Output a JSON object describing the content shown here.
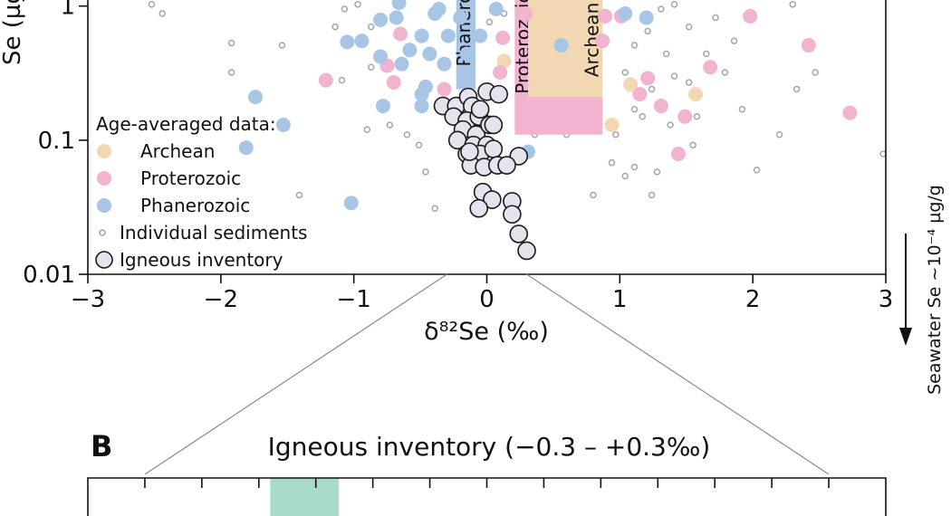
{
  "chart_data": [
    {
      "type": "scatter",
      "xlabel": "δ⁸²Se (‰)",
      "ylabel": "Se (µg/g)",
      "xlim": [
        -3,
        3
      ],
      "ylim": [
        0.01,
        1.11
      ],
      "yscale": "log",
      "xticks": [
        {
          "value": -3,
          "label": "−3"
        },
        {
          "value": -2,
          "label": "−2"
        },
        {
          "value": -1,
          "label": "−1"
        },
        0,
        1,
        2,
        3
      ],
      "yticks": [
        0.01,
        0.1,
        1
      ],
      "legend_title": "Age-averaged data:",
      "annotation": "Seawater Se ~10⁻⁴ µg/g",
      "ranges": [
        {
          "name": "Proterozoic",
          "color": "#f1b3cf",
          "x": [
            0.21,
            0.87
          ],
          "ymin": 0.11
        },
        {
          "name": "Archean",
          "color": "#f2d7b3",
          "x": [
            0.31,
            0.87
          ],
          "ymin": 0.21
        },
        {
          "name": "Phanerozoic",
          "color": "#a9c5e6",
          "x": [
            -0.23,
            -0.085
          ],
          "ymin": 0.24
        }
      ],
      "series": [
        {
          "name": "Individual sediments",
          "marker": "ring",
          "color": "#a6a6a6",
          "x": [
            -2.44,
            -2.52,
            -1.92,
            -1.54,
            -1.41,
            -1.92,
            -1.09,
            -0.87,
            -0.9,
            -0.73,
            -0.6,
            -0.46,
            -0.39,
            -0.51,
            -0.97,
            -1.07,
            -1.14,
            0.8,
            1.04,
            1.11,
            1.24,
            1.28,
            1.41,
            1.52,
            1.65,
            1.79,
            1.92,
            2.2,
            2.47,
            2.3,
            2.98,
            2.03,
            1.55,
            1.38,
            1.11,
            1.24,
            1.35,
            1.52,
            0.97,
            1.17,
            1.04,
            0.77,
            0.6,
            0.73,
            0.43,
            0.36,
            0.13,
            0.02,
            -0.87,
            1.11,
            1.21,
            1.72,
            1.86,
            1.58,
            1.41,
            1.31,
            0.83,
            2.33,
            0.51,
            0.94
          ],
          "values": [
            0.88,
            1.03,
            0.53,
            0.51,
            0.039,
            0.32,
            0.28,
            0.35,
            0.12,
            0.13,
            0.11,
            0.058,
            0.031,
            0.092,
            1.03,
            0.95,
            0.7,
            0.039,
            0.054,
            0.063,
            0.039,
            0.058,
            1.03,
            0.7,
            0.44,
            0.32,
            0.17,
            0.11,
            0.32,
            1.03,
            0.079,
            0.06,
            0.092,
            0.13,
            0.17,
            0.24,
            0.44,
            0.27,
            0.11,
            0.15,
            0.32,
            0.44,
            0.11,
            0.24,
            0.7,
            0.11,
            0.88,
            0.76,
            0.7,
            0.51,
            0.65,
            0.82,
            0.55,
            0.15,
            0.3,
            0.95,
            1.03,
            0.24,
            0.17,
            0.068
          ]
        },
        {
          "name": "Archean",
          "marker": "dot",
          "color": "#f2d7b3",
          "x": [
            0.13,
            1.08,
            1.57,
            0.94,
            0.67
          ],
          "values": [
            0.39,
            0.26,
            0.22,
            0.13,
            0.88
          ]
        },
        {
          "name": "Proterozoic",
          "marker": "dot",
          "color": "#f1b3cf",
          "x": [
            -1.21,
            -0.65,
            -0.75,
            -0.7,
            -0.32,
            0.12,
            0.1,
            0.29,
            0.89,
            0.87,
            1.01,
            1.68,
            1.98,
            2.42,
            1.15,
            1.21,
            1.31,
            1.49,
            1.44,
            2.73
          ],
          "values": [
            0.28,
            0.62,
            0.36,
            0.27,
            0.24,
            0.58,
            0.32,
            0.88,
            0.84,
            0.55,
            0.84,
            0.35,
            0.84,
            0.51,
            0.22,
            0.29,
            0.18,
            0.15,
            0.079,
            0.16
          ]
        },
        {
          "name": "Phanerozoic",
          "marker": "dot",
          "color": "#a9c5e6",
          "x": [
            -0.66,
            -0.68,
            -0.8,
            -1.05,
            -0.94,
            -0.8,
            -0.64,
            -0.58,
            -0.49,
            -0.43,
            -0.32,
            -0.39,
            -0.29,
            -0.2,
            -0.46,
            -0.49,
            -0.49,
            -0.36,
            -0.15,
            -0.05,
            -1.74,
            -1.53,
            -1.81,
            -1.02,
            -0.78,
            0.31,
            1.2,
            1.04,
            0.56,
            0.07
          ],
          "values": [
            1.06,
            0.82,
            0.79,
            0.54,
            0.55,
            0.42,
            0.37,
            0.47,
            0.6,
            0.44,
            0.37,
            0.88,
            0.6,
            0.82,
            0.25,
            0.22,
            0.18,
            0.95,
            0.44,
            0.6,
            0.21,
            0.13,
            0.088,
            0.034,
            0.18,
            0.082,
            0.82,
            0.88,
            0.51,
            0.95
          ]
        },
        {
          "name": "Igneous inventory",
          "marker": "outlined",
          "color": "#e4e3ee",
          "x": [
            -0.33,
            -0.23,
            -0.14,
            -0.11,
            0,
            0.09,
            -0.25,
            -0.15,
            -0.06,
            -0.18,
            -0.08,
            0.02,
            -0.22,
            -0.1,
            0,
            -0.15,
            -0.05,
            0.05,
            -0.12,
            -0.02,
            0.08,
            0.24,
            0.15,
            -0.03,
            0.04,
            -0.06,
            0.19,
            0.19,
            0.24,
            0.3,
            -0.13,
            0.05,
            -0.05
          ],
          "values": [
            0.18,
            0.18,
            0.21,
            0.18,
            0.23,
            0.22,
            0.15,
            0.14,
            0.15,
            0.12,
            0.11,
            0.13,
            0.1,
            0.092,
            0.092,
            0.079,
            0.079,
            0.086,
            0.065,
            0.063,
            0.065,
            0.076,
            0.065,
            0.041,
            0.036,
            0.031,
            0.035,
            0.028,
            0.02,
            0.015,
            0.082,
            0.13,
            0.17
          ]
        }
      ]
    },
    {
      "type": "span",
      "panel": "B",
      "title": "Igneous inventory (−0.3 – +0.3‰)",
      "xlim": [
        -0.35,
        0.35
      ],
      "xticks": [
        -0.3,
        -0.25,
        -0.2,
        -0.15,
        -0.1,
        -0.05,
        0,
        0.05,
        0.1,
        0.15,
        0.2,
        0.25,
        0.3
      ],
      "spans": [
        {
          "color": "#a8dcc8",
          "x": [
            -0.19,
            -0.13
          ]
        }
      ]
    }
  ]
}
